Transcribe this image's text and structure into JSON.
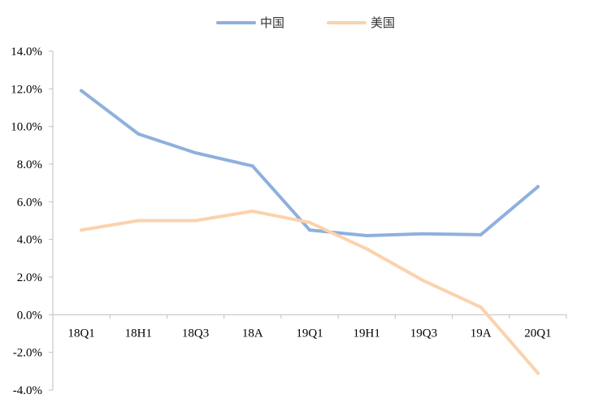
{
  "chart_data": {
    "type": "line",
    "categories": [
      "18Q1",
      "18H1",
      "18Q3",
      "18A",
      "19Q1",
      "19H1",
      "19Q3",
      "19A",
      "20Q1"
    ],
    "series": [
      {
        "name": "中国",
        "color": "#8eb0dd",
        "values": [
          11.9,
          9.6,
          8.6,
          7.9,
          4.5,
          4.2,
          4.3,
          4.25,
          6.8
        ]
      },
      {
        "name": "美国",
        "color": "#fbd2ad",
        "values": [
          4.5,
          5.0,
          5.0,
          5.5,
          4.9,
          3.5,
          1.8,
          0.4,
          -3.1
        ]
      }
    ],
    "y_ticks": [
      "14.0%",
      "12.0%",
      "10.0%",
      "8.0%",
      "6.0%",
      "4.0%",
      "2.0%",
      "0.0%",
      "-2.0%",
      "-4.0%"
    ],
    "ylim": [
      -4,
      14
    ],
    "y_unit": "%",
    "legend_position": "top-center",
    "grid": false
  }
}
